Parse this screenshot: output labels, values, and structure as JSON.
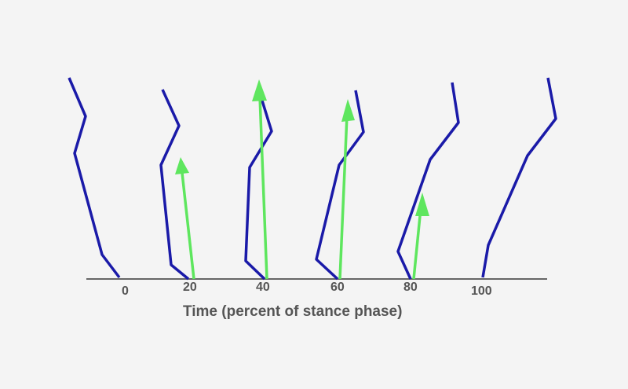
{
  "diagram": {
    "xlabel": "Time (percent of stance phase)",
    "ticks": [
      "0",
      "20",
      "40",
      "60",
      "80",
      "100"
    ],
    "colors": {
      "leg": "#1a1aa8",
      "force": "#5ee65e",
      "ground": "#666666",
      "text": "#555555",
      "background": "#f4f4f4"
    },
    "force_arrow_strength": [
      0,
      0.55,
      0.9,
      0.85,
      0.4,
      0
    ]
  }
}
